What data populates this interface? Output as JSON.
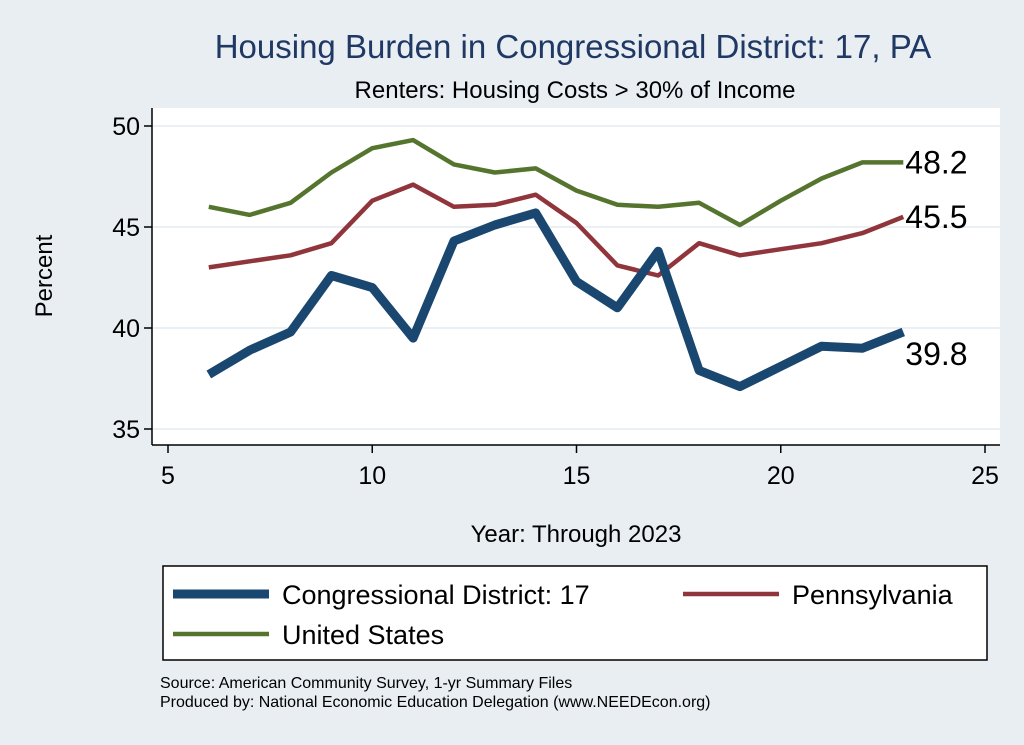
{
  "colors": {
    "page_background": "#e9eef3",
    "plot_background": "#ffffff",
    "title": "#1f3864"
  },
  "chart_data": {
    "type": "line",
    "title": "Housing Burden in Congressional District:  17, PA",
    "subtitle": "Renters: Housing Costs > 30% of Income",
    "xlabel": "Year: Through 2023",
    "ylabel": "Percent",
    "xlim": [
      5,
      25
    ],
    "ylim": [
      35,
      50
    ],
    "x_ticks": [
      "5",
      "10",
      "15",
      "20",
      "25"
    ],
    "y_ticks": [
      "35",
      "40",
      "45",
      "50"
    ],
    "grid": "horizontal",
    "legend_position": "bottom",
    "x": [
      6,
      7,
      8,
      9,
      10,
      11,
      12,
      13,
      14,
      15,
      16,
      17,
      18,
      19,
      20,
      21,
      22,
      23
    ],
    "series": [
      {
        "name": "Congressional District:  17",
        "color": "#1a476f",
        "width": "thick",
        "values": [
          37.7,
          38.9,
          39.8,
          42.6,
          42.0,
          39.5,
          44.3,
          45.1,
          45.7,
          42.3,
          41.0,
          43.8,
          37.9,
          37.1,
          38.1,
          39.1,
          39.0,
          39.8
        ],
        "end_label": "39.8"
      },
      {
        "name": "Pennsylvania",
        "color": "#90353b",
        "width": "medium",
        "values": [
          43.0,
          43.3,
          43.6,
          44.2,
          46.3,
          47.1,
          46.0,
          46.1,
          46.6,
          45.2,
          43.1,
          42.6,
          44.2,
          43.6,
          43.9,
          44.2,
          44.7,
          45.5
        ],
        "end_label": "45.5"
      },
      {
        "name": "United States",
        "color": "#55752f",
        "width": "medium",
        "values": [
          46.0,
          45.6,
          46.2,
          47.7,
          48.9,
          49.3,
          48.1,
          47.7,
          47.9,
          46.8,
          46.1,
          46.0,
          46.2,
          45.1,
          46.3,
          47.4,
          48.2,
          48.2
        ],
        "end_label": "48.2"
      }
    ]
  },
  "footer": {
    "source": "Source: American Community Survey, 1-yr Summary Files",
    "produced_by": "Produced by: National Economic Education Delegation (www.NEEDEcon.org)"
  }
}
